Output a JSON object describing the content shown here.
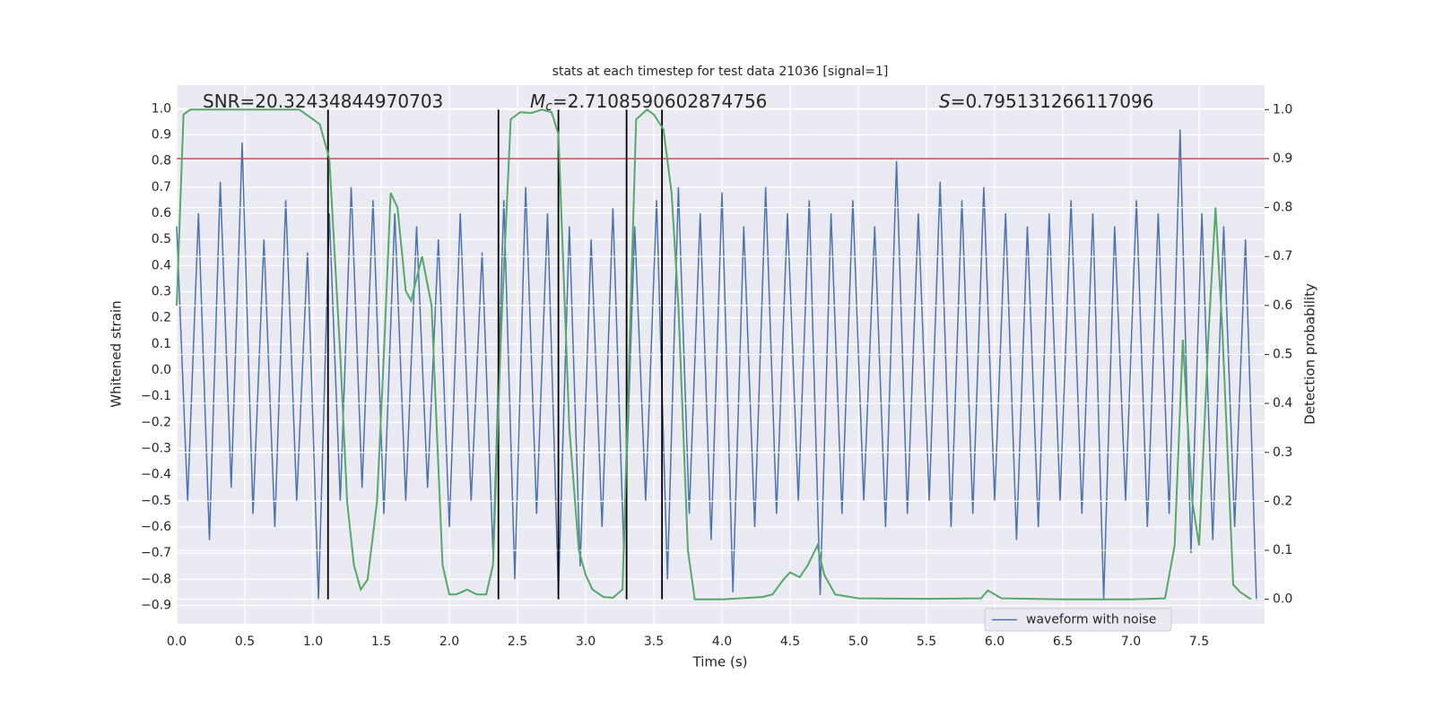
{
  "chart_data": {
    "type": "line",
    "title": "stats at each timestep for test data 21036 [signal=1]",
    "xlabel": "Time (s)",
    "ylabel": "Whitened strain",
    "y2label": "Detection probability",
    "xlim": [
      0,
      7.98
    ],
    "ylim": [
      -0.97,
      1.09
    ],
    "y2lim": [
      -0.05,
      1.05
    ],
    "xticks": [
      {
        "value": 0,
        "label": "0.0"
      },
      {
        "value": 0.5,
        "label": "0.5"
      },
      {
        "value": 1,
        "label": "1.0"
      },
      {
        "value": 1.5,
        "label": "1.5"
      },
      {
        "value": 2,
        "label": "2.0"
      },
      {
        "value": 2.5,
        "label": "2.5"
      },
      {
        "value": 3,
        "label": "3.0"
      },
      {
        "value": 3.5,
        "label": "3.5"
      },
      {
        "value": 4,
        "label": "4.0"
      },
      {
        "value": 4.5,
        "label": "4.5"
      },
      {
        "value": 5,
        "label": "5.0"
      },
      {
        "value": 5.5,
        "label": "5.5"
      },
      {
        "value": 6,
        "label": "6.0"
      },
      {
        "value": 6.5,
        "label": "6.5"
      },
      {
        "value": 7,
        "label": "7.0"
      },
      {
        "value": 7.5,
        "label": "7.5"
      }
    ],
    "yticks": [
      {
        "value": -0.9,
        "label": "−0.9"
      },
      {
        "value": -0.8,
        "label": "−0.8"
      },
      {
        "value": -0.7,
        "label": "−0.7"
      },
      {
        "value": -0.6,
        "label": "−0.6"
      },
      {
        "value": -0.5,
        "label": "−0.5"
      },
      {
        "value": -0.4,
        "label": "−0.4"
      },
      {
        "value": -0.3,
        "label": "−0.3"
      },
      {
        "value": -0.2,
        "label": "−0.2"
      },
      {
        "value": -0.1,
        "label": "−0.1"
      },
      {
        "value": 0,
        "label": "0.0"
      },
      {
        "value": 0.1,
        "label": "0.1"
      },
      {
        "value": 0.2,
        "label": "0.2"
      },
      {
        "value": 0.3,
        "label": "0.3"
      },
      {
        "value": 0.4,
        "label": "0.4"
      },
      {
        "value": 0.5,
        "label": "0.5"
      },
      {
        "value": 0.6,
        "label": "0.6"
      },
      {
        "value": 0.7,
        "label": "0.7"
      },
      {
        "value": 0.8,
        "label": "0.8"
      },
      {
        "value": 0.9,
        "label": "0.9"
      },
      {
        "value": 1,
        "label": "1.0"
      }
    ],
    "y2ticks": [
      {
        "value": 0,
        "label": "0.0"
      },
      {
        "value": 0.1,
        "label": "0.1"
      },
      {
        "value": 0.2,
        "label": "0.2"
      },
      {
        "value": 0.3,
        "label": "0.3"
      },
      {
        "value": 0.4,
        "label": "0.4"
      },
      {
        "value": 0.5,
        "label": "0.5"
      },
      {
        "value": 0.6,
        "label": "0.6"
      },
      {
        "value": 0.7,
        "label": "0.7"
      },
      {
        "value": 0.8,
        "label": "0.8"
      },
      {
        "value": 0.9,
        "label": "0.9"
      },
      {
        "value": 1,
        "label": "1.0"
      }
    ],
    "grid": true,
    "legend": "lower right",
    "series": [
      {
        "name": "waveform with noise",
        "color": "#4c72b0",
        "x": [
          0,
          0.08,
          0.16,
          0.24,
          0.32,
          0.4,
          0.48,
          0.56,
          0.64,
          0.72,
          0.8,
          0.88,
          0.96,
          1.04,
          1.12,
          1.2,
          1.28,
          1.36,
          1.44,
          1.52,
          1.6,
          1.68,
          1.76,
          1.84,
          1.92,
          2,
          2.08,
          2.16,
          2.24,
          2.32,
          2.4,
          2.48,
          2.56,
          2.64,
          2.72,
          2.8,
          2.88,
          2.96,
          3.04,
          3.12,
          3.2,
          3.28,
          3.36,
          3.44,
          3.52,
          3.6,
          3.68,
          3.76,
          3.84,
          3.92,
          4,
          4.08,
          4.16,
          4.24,
          4.32,
          4.4,
          4.48,
          4.56,
          4.64,
          4.72,
          4.8,
          4.88,
          4.96,
          5.04,
          5.12,
          5.2,
          5.28,
          5.36,
          5.44,
          5.52,
          5.6,
          5.68,
          5.76,
          5.84,
          5.92,
          6,
          6.08,
          6.16,
          6.24,
          6.32,
          6.4,
          6.48,
          6.56,
          6.64,
          6.72,
          6.8,
          6.88,
          6.96,
          7.04,
          7.12,
          7.2,
          7.28,
          7.36,
          7.44,
          7.52,
          7.6,
          7.68,
          7.76,
          7.84,
          7.92
        ],
        "values": [
          0.55,
          -0.5,
          0.6,
          -0.65,
          0.72,
          -0.45,
          0.87,
          -0.55,
          0.5,
          -0.6,
          0.65,
          -0.5,
          0.45,
          -0.88,
          0.6,
          -0.5,
          0.7,
          -0.45,
          0.65,
          -0.55,
          0.6,
          -0.5,
          0.55,
          -0.45,
          0.5,
          -0.6,
          0.6,
          -0.5,
          0.45,
          -0.7,
          0.65,
          -0.8,
          0.7,
          -0.55,
          0.6,
          -0.85,
          0.55,
          -0.75,
          0.5,
          -0.6,
          0.62,
          -0.7,
          0.55,
          -0.5,
          0.65,
          -0.8,
          0.7,
          -0.55,
          0.6,
          -0.65,
          0.68,
          -0.85,
          0.55,
          -0.6,
          0.7,
          -0.55,
          0.6,
          -0.5,
          0.65,
          -0.86,
          0.6,
          -0.55,
          0.65,
          -0.5,
          0.55,
          -0.6,
          0.8,
          -0.55,
          0.6,
          -0.5,
          0.72,
          -0.6,
          0.65,
          -0.55,
          0.7,
          -0.5,
          0.6,
          -0.65,
          0.55,
          -0.6,
          0.6,
          -0.5,
          0.65,
          -0.55,
          0.6,
          -0.88,
          0.55,
          -0.5,
          0.65,
          -0.6,
          0.6,
          -0.55,
          0.92,
          -0.7,
          0.6,
          -0.65,
          0.55,
          -0.6,
          0.5,
          -0.88
        ]
      },
      {
        "color": "#55a868",
        "axis": "y2",
        "x": [
          0,
          0.05,
          0.1,
          0.2,
          0.9,
          1,
          1.05,
          1.12,
          1.2,
          1.25,
          1.3,
          1.35,
          1.4,
          1.47,
          1.52,
          1.57,
          1.62,
          1.68,
          1.72,
          1.8,
          1.87,
          1.95,
          2,
          2.05,
          2.13,
          2.2,
          2.27,
          2.32,
          2.38,
          2.45,
          2.52,
          2.6,
          2.68,
          2.75,
          2.8,
          2.88,
          2.95,
          3,
          3.05,
          3.13,
          3.2,
          3.27,
          3.32,
          3.37,
          3.45,
          3.5,
          3.57,
          3.63,
          3.68,
          3.75,
          3.8,
          4,
          4.2,
          4.3,
          4.37,
          4.45,
          4.5,
          4.57,
          4.63,
          4.7,
          4.75,
          4.83,
          5,
          5.5,
          5.9,
          5.95,
          6.05,
          6.5,
          7,
          7.25,
          7.32,
          7.38,
          7.45,
          7.5,
          7.57,
          7.62,
          7.67,
          7.75,
          7.8,
          7.88
        ],
        "values": [
          0.6,
          0.99,
          1,
          1,
          1,
          0.98,
          0.97,
          0.9,
          0.5,
          0.2,
          0.07,
          0.02,
          0.04,
          0.2,
          0.5,
          0.83,
          0.8,
          0.63,
          0.61,
          0.7,
          0.6,
          0.07,
          0.01,
          0.01,
          0.02,
          0.01,
          0.01,
          0.07,
          0.55,
          0.98,
          0.995,
          0.993,
          1,
          0.995,
          0.95,
          0.35,
          0.1,
          0.05,
          0.02,
          0.005,
          0.003,
          0.02,
          0.5,
          0.98,
          1,
          0.99,
          0.96,
          0.83,
          0.6,
          0.1,
          0,
          0,
          0.003,
          0.005,
          0.01,
          0.04,
          0.055,
          0.045,
          0.07,
          0.11,
          0.05,
          0.01,
          0.002,
          0.001,
          0.002,
          0.018,
          0.002,
          0,
          0,
          0.002,
          0.11,
          0.53,
          0.2,
          0.11,
          0.55,
          0.8,
          0.55,
          0.03,
          0.015,
          0
        ]
      }
    ],
    "hlines": [
      {
        "value": 0.9,
        "axis": "y2",
        "color": "#c44e52"
      }
    ],
    "vlines": {
      "x": [
        1.11,
        2.36,
        2.8,
        3.3,
        3.56
      ],
      "y2range": [
        0,
        1
      ],
      "color": "#000000"
    },
    "annotations": [
      {
        "text": "SNR=20.32434844970703"
      },
      {
        "symbol": "M",
        "subscript": "c",
        "text": "=2.7108590602874756"
      },
      {
        "symbol": "S",
        "text": "=0.795131266117096"
      }
    ]
  }
}
